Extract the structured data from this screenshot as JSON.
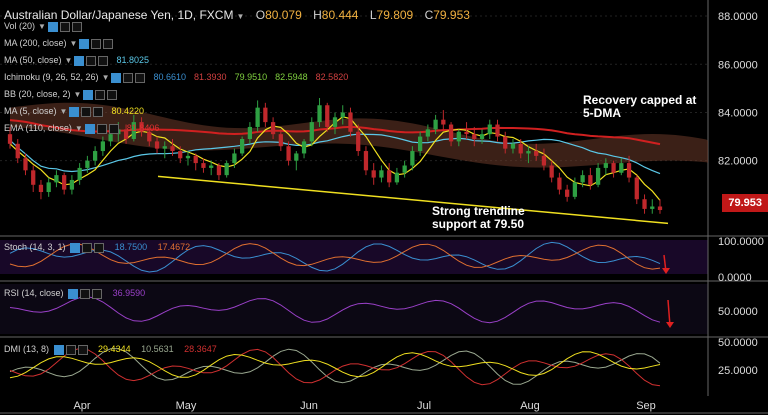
{
  "header": {
    "symbol": "Australian Dollar/Japanese Yen, 1D, FXCM",
    "open_label": "O",
    "open": "80.079",
    "high_label": "H",
    "high": "80.444",
    "low_label": "L",
    "low": "79.809",
    "close_label": "C",
    "close": "79.953"
  },
  "indicators": [
    {
      "label": "Vol (20)",
      "values": []
    },
    {
      "label": "MA (200, close)",
      "values": []
    },
    {
      "label": "MA (50, close)",
      "values": [
        {
          "v": "81.8025",
          "color": "#5bc8e8"
        }
      ]
    },
    {
      "label": "Ichimoku (9, 26, 52, 26)",
      "values": [
        {
          "v": "80.6610",
          "color": "#3a8fd0"
        },
        {
          "v": "81.3930",
          "color": "#d04040"
        },
        {
          "v": "79.9510",
          "color": "#7fcf3f"
        },
        {
          "v": "82.5948",
          "color": "#7fcf3f"
        },
        {
          "v": "82.5820",
          "color": "#d04040"
        }
      ]
    },
    {
      "label": "BB (20, close, 2)",
      "values": []
    },
    {
      "label": "MA (5, close)",
      "values": [
        {
          "v": "80.4220",
          "color": "#f0e020"
        }
      ]
    },
    {
      "label": "EMA (110, close)",
      "values": [
        {
          "v": "81.8406",
          "color": "#e03030"
        }
      ]
    }
  ],
  "annotations": {
    "top": [
      "Recovery capped at",
      "5-DMA"
    ],
    "bottom": [
      "Strong trendline",
      "support at 79.50"
    ]
  },
  "price_tag": "79.953",
  "colors": {
    "up": "#2ea043",
    "down": "#c0282c",
    "ma5": "#f0e020",
    "ma50": "#5bc8e8",
    "ema110": "#d02020",
    "trend": "#f0e020",
    "stoch_k": "#3a8fd0",
    "stoch_d": "#e07030",
    "rsi": "#9a40c8",
    "dmi_adx": "#f0e020",
    "dmi_plus": "#9aa890",
    "dmi_minus": "#d03030",
    "panel_bg": "#180828"
  },
  "chart_data": {
    "type": "candlestick",
    "x_labels": [
      "Apr",
      "May",
      "Jun",
      "Jul",
      "Aug",
      "Sep"
    ],
    "y_ticks": [
      "88.0000",
      "86.0000",
      "84.0000",
      "82.0000"
    ],
    "ylim": [
      79.0,
      88.5
    ],
    "ohlc": [
      [
        83.1,
        83.4,
        82.5,
        82.7
      ],
      [
        82.7,
        82.9,
        81.9,
        82.1
      ],
      [
        82.1,
        82.3,
        81.4,
        81.6
      ],
      [
        81.6,
        81.8,
        80.7,
        81.0
      ],
      [
        81.0,
        81.2,
        80.4,
        80.7
      ],
      [
        80.7,
        81.3,
        80.5,
        81.1
      ],
      [
        81.1,
        81.6,
        80.9,
        81.4
      ],
      [
        81.4,
        81.5,
        80.6,
        80.8
      ],
      [
        80.8,
        81.4,
        80.6,
        81.2
      ],
      [
        81.2,
        81.9,
        81.0,
        81.7
      ],
      [
        81.7,
        82.2,
        81.5,
        82.0
      ],
      [
        82.0,
        82.6,
        81.8,
        82.4
      ],
      [
        82.4,
        83.0,
        82.2,
        82.8
      ],
      [
        82.8,
        83.3,
        82.6,
        83.1
      ],
      [
        83.1,
        83.6,
        82.8,
        83.3
      ],
      [
        83.3,
        83.5,
        82.7,
        82.9
      ],
      [
        82.9,
        83.9,
        82.8,
        83.6
      ],
      [
        83.6,
        83.8,
        83.0,
        83.2
      ],
      [
        83.2,
        83.4,
        82.6,
        82.8
      ],
      [
        82.8,
        83.0,
        82.3,
        82.5
      ],
      [
        82.5,
        82.8,
        82.1,
        82.6
      ],
      [
        82.6,
        82.9,
        82.2,
        82.4
      ],
      [
        82.4,
        82.6,
        81.9,
        82.1
      ],
      [
        82.1,
        82.4,
        81.8,
        82.2
      ],
      [
        82.2,
        82.3,
        81.6,
        81.9
      ],
      [
        81.9,
        82.1,
        81.5,
        81.7
      ],
      [
        81.7,
        82.0,
        81.4,
        81.8
      ],
      [
        81.8,
        81.9,
        81.2,
        81.4
      ],
      [
        81.4,
        82.0,
        81.3,
        81.9
      ],
      [
        81.9,
        82.5,
        81.7,
        82.3
      ],
      [
        82.3,
        83.0,
        82.2,
        82.9
      ],
      [
        82.9,
        83.6,
        82.7,
        83.4
      ],
      [
        83.4,
        84.5,
        83.2,
        84.2
      ],
      [
        84.2,
        84.4,
        83.4,
        83.6
      ],
      [
        83.6,
        83.8,
        82.9,
        83.1
      ],
      [
        83.1,
        83.3,
        82.4,
        82.6
      ],
      [
        82.6,
        82.8,
        81.8,
        82.0
      ],
      [
        82.0,
        82.4,
        81.6,
        82.3
      ],
      [
        82.3,
        82.9,
        82.1,
        82.8
      ],
      [
        82.8,
        83.8,
        82.6,
        83.6
      ],
      [
        83.6,
        84.6,
        83.4,
        84.3
      ],
      [
        84.3,
        84.4,
        83.2,
        83.4
      ],
      [
        83.4,
        84.0,
        83.1,
        83.8
      ],
      [
        83.8,
        84.3,
        83.5,
        84.0
      ],
      [
        84.0,
        84.2,
        83.0,
        83.2
      ],
      [
        83.2,
        83.5,
        82.2,
        82.4
      ],
      [
        82.4,
        82.6,
        81.4,
        81.6
      ],
      [
        81.6,
        81.9,
        81.0,
        81.3
      ],
      [
        81.3,
        81.8,
        81.1,
        81.6
      ],
      [
        81.6,
        81.9,
        80.9,
        81.1
      ],
      [
        81.1,
        81.7,
        81.0,
        81.5
      ],
      [
        81.5,
        82.0,
        81.3,
        81.8
      ],
      [
        81.8,
        82.6,
        81.6,
        82.4
      ],
      [
        82.4,
        83.2,
        82.2,
        83.0
      ],
      [
        83.0,
        83.5,
        82.8,
        83.3
      ],
      [
        83.3,
        83.9,
        83.1,
        83.7
      ],
      [
        83.7,
        84.1,
        83.3,
        83.5
      ],
      [
        83.5,
        83.6,
        82.6,
        82.8
      ],
      [
        82.8,
        83.3,
        82.6,
        83.2
      ],
      [
        83.2,
        83.6,
        82.9,
        83.1
      ],
      [
        83.1,
        83.4,
        82.6,
        82.9
      ],
      [
        82.9,
        83.3,
        82.7,
        83.1
      ],
      [
        83.1,
        83.7,
        82.9,
        83.5
      ],
      [
        83.5,
        83.7,
        82.8,
        83.0
      ],
      [
        83.0,
        83.2,
        82.3,
        82.5
      ],
      [
        82.5,
        82.9,
        82.3,
        82.7
      ],
      [
        82.7,
        82.9,
        82.1,
        82.3
      ],
      [
        82.3,
        82.6,
        81.9,
        82.4
      ],
      [
        82.4,
        82.7,
        82.0,
        82.2
      ],
      [
        82.2,
        82.5,
        81.6,
        81.8
      ],
      [
        81.8,
        82.0,
        81.1,
        81.3
      ],
      [
        81.3,
        81.5,
        80.6,
        80.8
      ],
      [
        80.8,
        81.0,
        80.3,
        80.5
      ],
      [
        80.5,
        81.3,
        80.4,
        81.1
      ],
      [
        81.1,
        81.6,
        80.9,
        81.4
      ],
      [
        81.4,
        81.7,
        80.8,
        81.0
      ],
      [
        81.0,
        81.9,
        80.9,
        81.7
      ],
      [
        81.7,
        82.1,
        81.4,
        81.9
      ],
      [
        81.9,
        82.0,
        81.3,
        81.5
      ],
      [
        81.5,
        82.1,
        81.4,
        81.9
      ],
      [
        81.9,
        82.2,
        81.1,
        81.3
      ],
      [
        81.3,
        81.4,
        80.2,
        80.4
      ],
      [
        80.4,
        80.6,
        79.8,
        80.0
      ],
      [
        80.0,
        80.4,
        79.8,
        80.1
      ],
      [
        80.1,
        80.4,
        79.8,
        79.953
      ]
    ],
    "trendline": {
      "start": 81.35,
      "end": 79.4
    },
    "stoch": {
      "label": "Stoch (14, 3, 1)",
      "k": "18.7500",
      "d": "17.4672",
      "ticks": [
        "100.0000",
        "0.0000"
      ]
    },
    "rsi": {
      "label": "RSI (14, close)",
      "value": "36.9590",
      "ticks": [
        "50.0000"
      ]
    },
    "dmi": {
      "label": "DMI (13, 8)",
      "adx": "29.4344",
      "plus": "10.5631",
      "minus": "28.3647",
      "ticks": [
        "50.0000",
        "25.0000"
      ]
    }
  }
}
